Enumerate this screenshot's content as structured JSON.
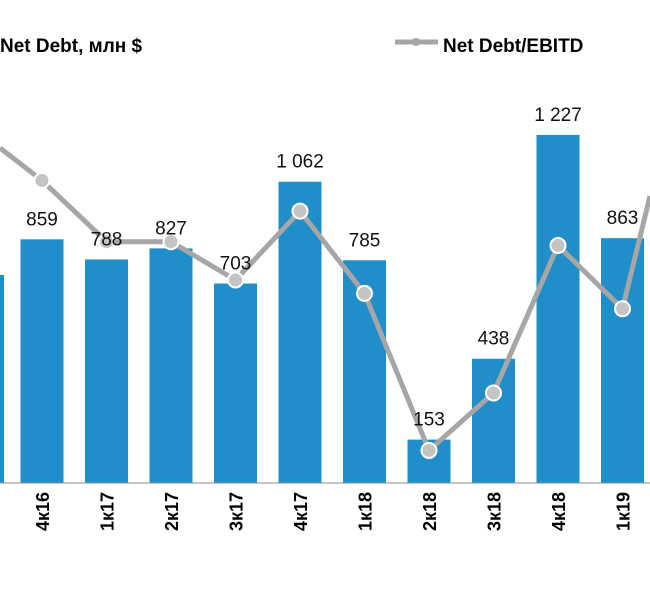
{
  "chart_data": {
    "type": "bar",
    "categories": [
      "4к16",
      "1к17",
      "2к17",
      "3к17",
      "4к17",
      "1к18",
      "2к18",
      "3к18",
      "4к18",
      "1к19"
    ],
    "series": [
      {
        "name": "Net Debt, млн $",
        "chart_type": "bar",
        "color": "#1f8ec9",
        "values": [
          859,
          788,
          827,
          703,
          1062,
          785,
          153,
          438,
          1227,
          863
        ],
        "labels": [
          "859",
          "788",
          "827",
          "703",
          "1 062",
          "785",
          "153",
          "438",
          "1 227",
          "863"
        ]
      },
      {
        "name": "Net Debt/EBITD",
        "chart_type": "line",
        "color": "#a6a6a6",
        "axis": "secondary",
        "values": [
          1.58,
          1.26,
          1.26,
          1.06,
          1.42,
          0.99,
          0.17,
          0.47,
          1.24,
          0.91
        ]
      }
    ],
    "ylim": [
      0,
      1350
    ],
    "y2lim": [
      0,
      2.0
    ],
    "legend_position": "top",
    "grid": false,
    "title": "",
    "xlabel": "",
    "ylabel": ""
  }
}
